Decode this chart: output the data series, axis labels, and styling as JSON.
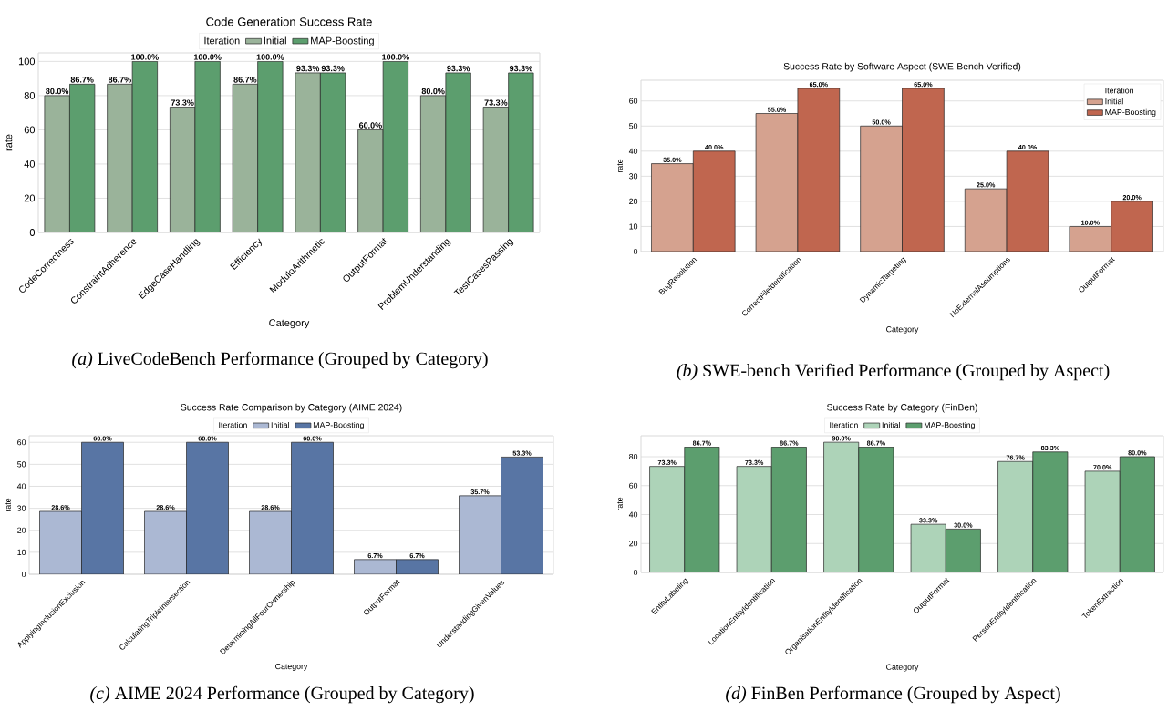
{
  "chart_data": [
    {
      "type": "bar",
      "title": "Code Generation Success Rate",
      "xlabel": "Category",
      "ylabel": "rate",
      "legend_title": "Iteration",
      "legend": "top",
      "grid": "y",
      "ylim": [
        0,
        105
      ],
      "yticks": [
        0,
        20,
        40,
        60,
        80,
        100
      ],
      "categories": [
        "CodeCorrectness",
        "ConstraintAdherence",
        "EdgeCaseHandling",
        "Efficiency",
        "ModuloArithmetic",
        "OutputFormat",
        "ProblemUnderstanding",
        "TestCasesPassing"
      ],
      "series": [
        {
          "name": "Initial",
          "color": "#9ab39a",
          "values": [
            80.0,
            86.7,
            73.3,
            86.7,
            93.3,
            60.0,
            80.0,
            73.3
          ],
          "value_labels": [
            "80.0%",
            "86.7%",
            "73.3%",
            "86.7%",
            "93.3%",
            "60.0%",
            "80.0%",
            "73.3%"
          ]
        },
        {
          "name": "MAP-Boosting",
          "color": "#5c9e6e",
          "values": [
            86.7,
            100.0,
            100.0,
            100.0,
            93.3,
            100.0,
            93.3,
            93.3
          ],
          "value_labels": [
            "86.7%",
            "100.0%",
            "100.0%",
            "100.0%",
            "93.3%",
            "100.0%",
            "93.3%",
            "93.3%"
          ]
        }
      ],
      "annotations": [
        "*(a)* LiveCodeBench Performance (Grouped by Category)"
      ]
    },
    {
      "type": "bar",
      "title": "Success Rate by Software Aspect (SWE-Bench Verified)",
      "xlabel": "Category",
      "ylabel": "rate",
      "legend_title": "Iteration",
      "legend": "top right",
      "grid": "y",
      "ylim": [
        0,
        68.25
      ],
      "yticks": [
        0,
        10,
        20,
        30,
        40,
        50,
        60
      ],
      "categories": [
        "BugResolution",
        "CorrectFileIdentification",
        "DynamicTargeting",
        "NoExternalAssumptions",
        "OutputFormat"
      ],
      "series": [
        {
          "name": "Initial",
          "color": "#d5a28f",
          "values": [
            35.0,
            55.0,
            50.0,
            25.0,
            10.0
          ],
          "value_labels": [
            "35.0%",
            "55.0%",
            "50.0%",
            "25.0%",
            "10.0%"
          ]
        },
        {
          "name": "MAP-Boosting",
          "color": "#c0664f",
          "values": [
            40.0,
            65.0,
            65.0,
            40.0,
            20.0
          ],
          "value_labels": [
            "40.0%",
            "65.0%",
            "65.0%",
            "40.0%",
            "20.0%"
          ]
        }
      ],
      "annotations": [
        "*(b)* SWE-bench Verified Performance (Grouped by Aspect)"
      ]
    },
    {
      "type": "bar",
      "title": "Success Rate Comparison by Category (AIME 2024)",
      "xlabel": "Category",
      "ylabel": "rate",
      "legend_title": "Iteration",
      "legend": "top",
      "grid": "y",
      "ylim": [
        0,
        63
      ],
      "yticks": [
        0,
        10,
        20,
        30,
        40,
        50,
        60
      ],
      "categories": [
        "ApplyingInclusionExclusion",
        "CalculatingTripleIntersection",
        "DeterminingAllFourOwnership",
        "OutputFormat",
        "UnderstandingGivenValues"
      ],
      "series": [
        {
          "name": "Initial",
          "color": "#abb8d3",
          "values": [
            28.6,
            28.6,
            28.6,
            6.7,
            35.7
          ],
          "value_labels": [
            "28.6%",
            "28.6%",
            "28.6%",
            "6.7%",
            "35.7%"
          ]
        },
        {
          "name": "MAP-Boosting",
          "color": "#5875a4",
          "values": [
            60.0,
            60.0,
            60.0,
            6.7,
            53.3
          ],
          "value_labels": [
            "60.0%",
            "60.0%",
            "60.0%",
            "6.7%",
            "53.3%"
          ]
        }
      ],
      "annotations": [
        "*(c)* AIME 2024 Performance (Grouped by Category)"
      ]
    },
    {
      "type": "bar",
      "title": "Success Rate by Category (FinBen)",
      "xlabel": "Category",
      "ylabel": "rate",
      "legend_title": "Iteration",
      "legend": "top",
      "grid": "y",
      "ylim": [
        0,
        94.5
      ],
      "yticks": [
        0,
        20,
        40,
        60,
        80
      ],
      "categories": [
        "EntityLabeling",
        "LocationEntityIdentification",
        "OrganisationEntityIdentification",
        "OutputFormat",
        "PersonEntityIdentification",
        "TokenExtraction"
      ],
      "series": [
        {
          "name": "Initial",
          "color": "#add3b8",
          "values": [
            73.3,
            73.3,
            90.0,
            33.3,
            76.7,
            70.0
          ],
          "value_labels": [
            "73.3%",
            "73.3%",
            "90.0%",
            "33.3%",
            "76.7%",
            "70.0%"
          ]
        },
        {
          "name": "MAP-Boosting",
          "color": "#5c9e6e",
          "values": [
            86.7,
            86.7,
            86.7,
            30.0,
            83.3,
            80.0
          ],
          "value_labels": [
            "86.7%",
            "86.7%",
            "86.7%",
            "30.0%",
            "83.3%",
            "80.0%"
          ]
        }
      ],
      "annotations": [
        "*(d)* FinBen Performance (Grouped by Aspect)"
      ]
    }
  ]
}
